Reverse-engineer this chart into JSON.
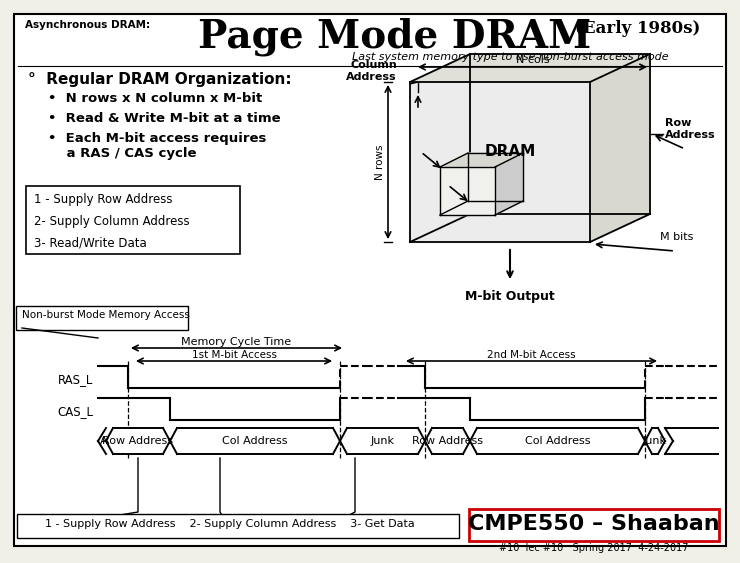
{
  "bg_color": "#f0f0e8",
  "title_small": "Asynchronous DRAM:",
  "title_large": "Page Mode DRAM",
  "title_sub1": "(Early 1980s)",
  "title_sub2": "Last system memory type to use non-burst access mode",
  "bullet_header": "°  Regular DRAM Organization:",
  "bullets": [
    "N rows x N column x M-bit",
    "Read & Write M-bit at a time",
    "Each M-bit access requires\n    a RAS / CAS cycle"
  ],
  "steps_box": "1 - Supply Row Address\n2- Supply Column Address\n3- Read/Write Data",
  "non_burst_label": "Non-burst Mode Memory Access",
  "mbit_output": "M-bit Output",
  "memory_cycle_label": "Memory Cycle Time",
  "access1_label": "1st M-bit Access",
  "access2_label": "2nd M-bit Access",
  "ras_label": "RAS_L",
  "cas_label": "CAS_L",
  "footer_text": "1 - Supply Row Address    2- Supply Column Address    3- Get Data",
  "cmpe_text": "CMPE550 – Shaaban",
  "bottom_text": "#10  lec #10   Spring 2017  4-24-2017",
  "line_color": "#000000",
  "box_fill": "#ffffff"
}
